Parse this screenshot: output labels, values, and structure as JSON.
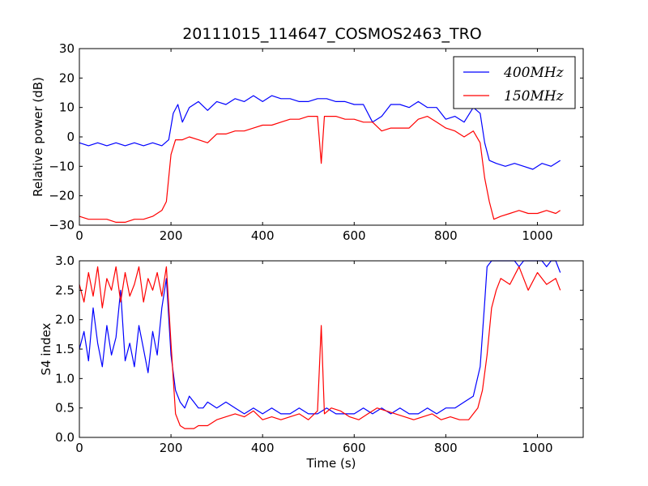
{
  "chart_data": [
    {
      "type": "line",
      "title": "20111015_114647_COSMOS2463_TRO",
      "xlabel": "",
      "ylabel": "Relative power (dB)",
      "xlim": [
        0,
        1100
      ],
      "ylim": [
        -30,
        30
      ],
      "xticks": [
        "0",
        "200",
        "400",
        "600",
        "800",
        "1000"
      ],
      "yticks": [
        "−30",
        "−20",
        "−10",
        "0",
        "10",
        "20",
        "30"
      ],
      "grid": false,
      "legend_position": "top-right",
      "series": [
        {
          "name": "400MHz",
          "color": "#0000ff",
          "x": [
            0,
            20,
            40,
            60,
            80,
            100,
            120,
            140,
            160,
            180,
            195,
            205,
            215,
            225,
            240,
            260,
            280,
            300,
            320,
            340,
            360,
            380,
            400,
            420,
            440,
            460,
            480,
            500,
            520,
            540,
            560,
            580,
            600,
            620,
            640,
            660,
            680,
            700,
            720,
            740,
            760,
            780,
            800,
            820,
            840,
            860,
            875,
            885,
            895,
            910,
            930,
            950,
            970,
            990,
            1010,
            1030,
            1050
          ],
          "y": [
            -2,
            -3,
            -2,
            -3,
            -2,
            -3,
            -2,
            -3,
            -2,
            -3,
            -1,
            8,
            11,
            5,
            10,
            12,
            9,
            12,
            11,
            13,
            12,
            14,
            12,
            14,
            13,
            13,
            12,
            12,
            13,
            13,
            12,
            12,
            11,
            11,
            5,
            7,
            11,
            11,
            10,
            12,
            10,
            10,
            6,
            7,
            5,
            10,
            8,
            -2,
            -8,
            -9,
            -10,
            -9,
            -10,
            -11,
            -9,
            -10,
            -8
          ]
        },
        {
          "name": "150MHz",
          "color": "#ff0000",
          "x": [
            0,
            20,
            40,
            60,
            80,
            100,
            120,
            140,
            160,
            180,
            190,
            200,
            210,
            225,
            240,
            260,
            280,
            300,
            320,
            340,
            360,
            380,
            400,
            420,
            440,
            460,
            480,
            500,
            520,
            528,
            535,
            560,
            580,
            600,
            620,
            640,
            660,
            680,
            700,
            720,
            740,
            760,
            780,
            800,
            820,
            840,
            860,
            875,
            885,
            895,
            905,
            920,
            940,
            960,
            980,
            1000,
            1020,
            1040,
            1050
          ],
          "y": [
            -27,
            -28,
            -28,
            -28,
            -29,
            -29,
            -28,
            -28,
            -27,
            -25,
            -22,
            -6,
            -1,
            -1,
            0,
            -1,
            -2,
            1,
            1,
            2,
            2,
            3,
            4,
            4,
            5,
            6,
            6,
            7,
            7,
            -9,
            7,
            7,
            6,
            6,
            5,
            5,
            2,
            3,
            3,
            3,
            6,
            7,
            5,
            3,
            2,
            0,
            2,
            -2,
            -14,
            -22,
            -28,
            -27,
            -26,
            -25,
            -26,
            -26,
            -25,
            -26,
            -25
          ]
        }
      ]
    },
    {
      "type": "line",
      "title": "",
      "xlabel": "Time (s)",
      "ylabel": "S4 index",
      "xlim": [
        0,
        1100
      ],
      "ylim": [
        0,
        3
      ],
      "xticks": [
        "0",
        "200",
        "400",
        "600",
        "800",
        "1000"
      ],
      "yticks": [
        "0.0",
        "0.5",
        "1.0",
        "1.5",
        "2.0",
        "2.5",
        "3.0"
      ],
      "grid": false,
      "series": [
        {
          "name": "400MHz",
          "color": "#0000ff",
          "x": [
            0,
            10,
            20,
            30,
            40,
            50,
            60,
            70,
            80,
            90,
            100,
            110,
            120,
            130,
            140,
            150,
            160,
            170,
            180,
            190,
            200,
            210,
            220,
            230,
            240,
            250,
            260,
            270,
            280,
            300,
            320,
            340,
            360,
            380,
            400,
            420,
            440,
            460,
            480,
            500,
            520,
            540,
            560,
            580,
            600,
            620,
            640,
            660,
            680,
            700,
            720,
            740,
            760,
            780,
            800,
            820,
            840,
            860,
            875,
            885,
            890,
            900,
            910,
            920,
            930,
            940,
            950,
            960,
            970,
            980,
            990,
            1000,
            1010,
            1020,
            1030,
            1040,
            1050
          ],
          "y": [
            1.5,
            1.8,
            1.3,
            2.2,
            1.6,
            1.2,
            1.9,
            1.4,
            1.7,
            2.5,
            1.3,
            1.6,
            1.2,
            1.9,
            1.5,
            1.1,
            1.8,
            1.4,
            2.2,
            2.7,
            1.4,
            0.8,
            0.6,
            0.5,
            0.7,
            0.6,
            0.5,
            0.5,
            0.6,
            0.5,
            0.6,
            0.5,
            0.4,
            0.5,
            0.4,
            0.5,
            0.4,
            0.4,
            0.5,
            0.4,
            0.4,
            0.5,
            0.4,
            0.4,
            0.4,
            0.5,
            0.4,
            0.5,
            0.4,
            0.5,
            0.4,
            0.4,
            0.5,
            0.4,
            0.5,
            0.5,
            0.6,
            0.7,
            1.2,
            2.3,
            2.9,
            3.0,
            3.0,
            3.0,
            3.0,
            3.0,
            3.0,
            2.9,
            3.0,
            3.0,
            3.0,
            3.0,
            3.0,
            2.9,
            3.0,
            3.0,
            2.8
          ]
        },
        {
          "name": "150MHz",
          "color": "#ff0000",
          "x": [
            0,
            10,
            20,
            30,
            40,
            50,
            60,
            70,
            80,
            90,
            100,
            110,
            120,
            130,
            140,
            150,
            160,
            170,
            180,
            190,
            200,
            210,
            220,
            230,
            240,
            250,
            260,
            280,
            300,
            320,
            340,
            360,
            380,
            400,
            420,
            440,
            460,
            480,
            500,
            520,
            528,
            535,
            550,
            570,
            590,
            610,
            630,
            650,
            670,
            690,
            710,
            730,
            750,
            770,
            790,
            810,
            830,
            850,
            870,
            880,
            890,
            900,
            910,
            920,
            940,
            960,
            980,
            1000,
            1020,
            1040,
            1050
          ],
          "y": [
            2.6,
            2.3,
            2.8,
            2.4,
            2.9,
            2.2,
            2.7,
            2.5,
            2.9,
            2.3,
            2.8,
            2.4,
            2.6,
            2.9,
            2.3,
            2.7,
            2.5,
            2.8,
            2.4,
            2.9,
            1.6,
            0.4,
            0.2,
            0.15,
            0.15,
            0.15,
            0.2,
            0.2,
            0.3,
            0.35,
            0.4,
            0.35,
            0.45,
            0.3,
            0.35,
            0.3,
            0.35,
            0.4,
            0.3,
            0.45,
            1.9,
            0.4,
            0.5,
            0.45,
            0.35,
            0.3,
            0.4,
            0.5,
            0.45,
            0.4,
            0.35,
            0.3,
            0.35,
            0.4,
            0.3,
            0.35,
            0.3,
            0.3,
            0.5,
            0.8,
            1.4,
            2.2,
            2.5,
            2.7,
            2.6,
            2.9,
            2.5,
            2.8,
            2.6,
            2.7,
            2.5
          ]
        }
      ]
    }
  ],
  "legend": [
    {
      "label": "400MHz",
      "color": "#0000ff"
    },
    {
      "label": "150MHz",
      "color": "#ff0000"
    }
  ]
}
